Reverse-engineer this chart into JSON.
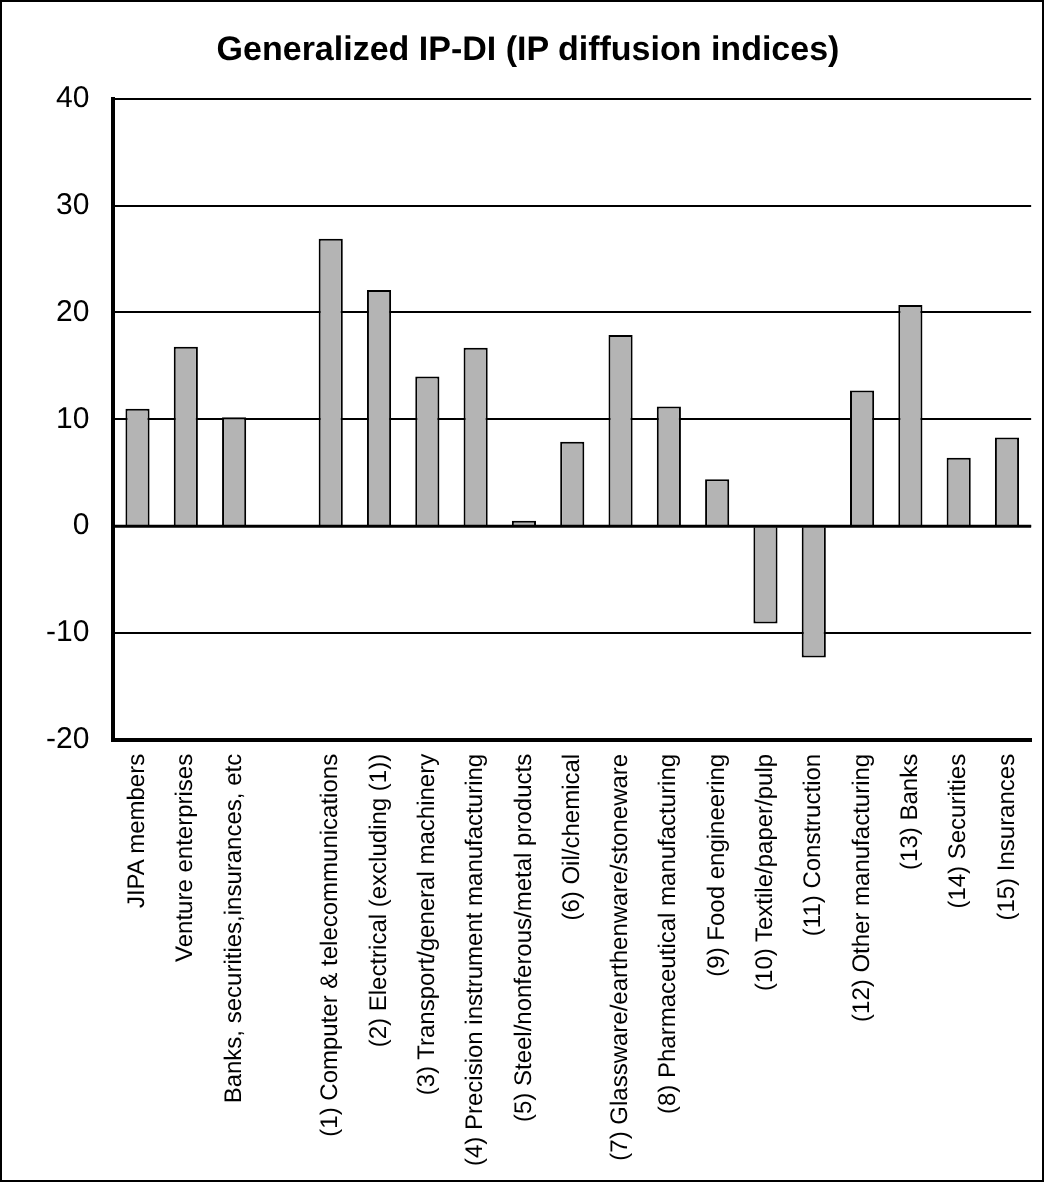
{
  "chart_data": {
    "type": "bar",
    "title": "Generalized IP-DI (IP diffusion indices)",
    "categories": [
      "JIPA members",
      "Venture enterprises",
      "Banks, securities,insurances, etc",
      null,
      "(1) Computer & telecommunications",
      "(2) Electrical (excluding (1))",
      "(3) Transport/general machinery",
      "(4) Precision instrument manufacturing",
      "(5) Steel/nonferous/metal products",
      "(6) Oil/chemical",
      "(7) Glassware/earthenware/stoneware",
      "(8) Pharmaceutical manufacturing",
      "(9) Food engineering",
      "(10) Textile/paper/pulp",
      "(11) Construction",
      "(12) Other manufacturing",
      "(13) Banks",
      "(14) Securities",
      "(15) Insurances"
    ],
    "values": [
      11.0,
      16.8,
      10.2,
      null,
      26.9,
      22.1,
      14.0,
      16.7,
      0.5,
      7.9,
      17.9,
      11.2,
      4.4,
      -9.1,
      -12.3,
      12.7,
      20.7,
      6.4,
      8.3
    ],
    "color": "#b4b4b4",
    "ylim": [
      -20,
      40
    ],
    "yticks": [
      -20,
      -10,
      0,
      10,
      20,
      30,
      40
    ],
    "grid": "y",
    "legend": false
  }
}
